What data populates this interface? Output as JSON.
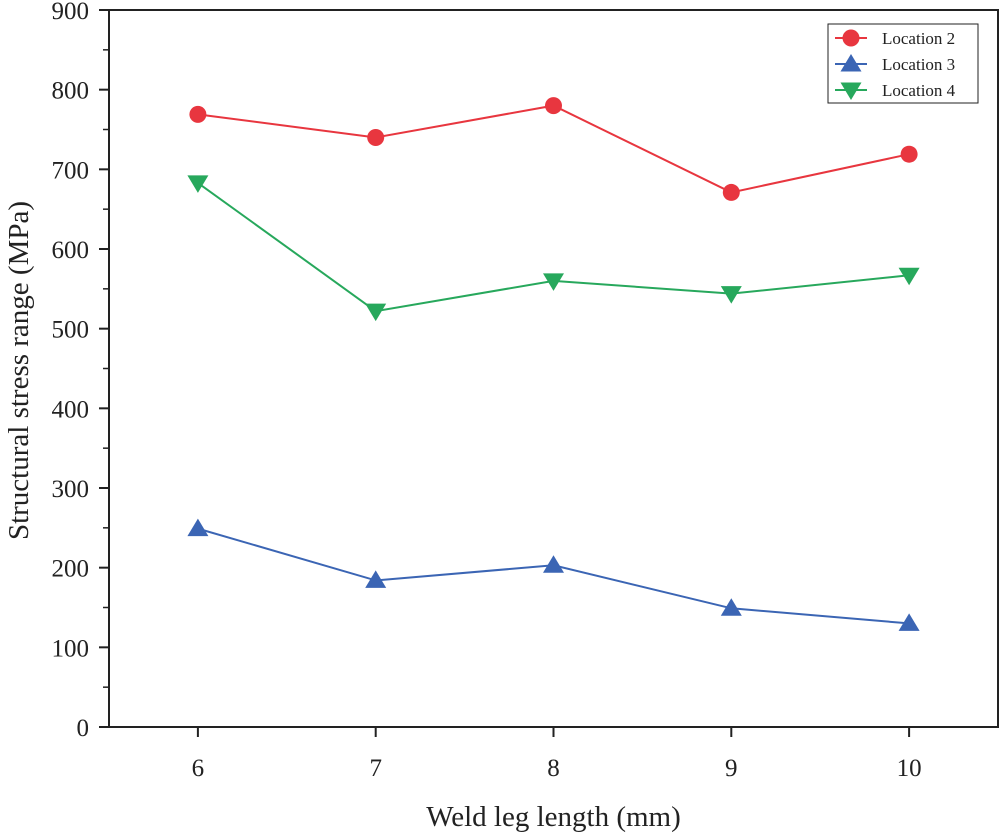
{
  "chart_data": {
    "type": "line",
    "title": "",
    "xlabel": "Weld leg length (mm)",
    "ylabel": "Structural stress range (MPa)",
    "x": [
      6,
      7,
      8,
      9,
      10
    ],
    "xticks": [
      6,
      7,
      8,
      9,
      10
    ],
    "xlim": [
      5.5,
      10.5
    ],
    "ylim": [
      0,
      900
    ],
    "yticks": [
      0,
      100,
      200,
      300,
      400,
      500,
      600,
      700,
      800,
      900
    ],
    "grid": false,
    "legend_position": "top-right",
    "series": [
      {
        "name": "Location 2",
        "marker": "circle",
        "color": "#e8363f",
        "values": [
          769,
          740,
          780,
          671,
          719
        ]
      },
      {
        "name": "Location 3",
        "marker": "triangle-up",
        "color": "#3b65b4",
        "values": [
          249,
          184,
          203,
          149,
          130
        ]
      },
      {
        "name": "Location 4",
        "marker": "triangle-down",
        "color": "#27a85c",
        "values": [
          683,
          522,
          560,
          544,
          567
        ]
      }
    ]
  }
}
